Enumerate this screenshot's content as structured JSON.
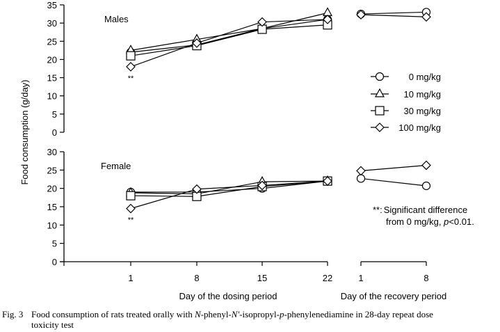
{
  "chart_data": {
    "type": "line",
    "title": "",
    "ylabel": "Food consumption (g/day)",
    "xlabel_dosing": "Day of the dosing period",
    "xlabel_recovery": "Day of the recovery period",
    "x_dosing": [
      1,
      8,
      15,
      22
    ],
    "x_recovery": [
      1,
      8
    ],
    "x_tick_labels_dosing": [
      "1",
      "8",
      "15",
      "22"
    ],
    "x_tick_labels_recovery": [
      "1",
      "8"
    ],
    "panels": [
      {
        "label": "Males",
        "ylim": [
          0,
          35
        ],
        "yticks": [
          0,
          5,
          10,
          15,
          20,
          25,
          30,
          35
        ],
        "significance_marks": [
          {
            "series": "100 mg/kg",
            "day": 1,
            "text": "**"
          }
        ],
        "series": [
          {
            "name": "0 mg/kg",
            "marker": "circle",
            "dosing": [
              22.0,
              24.0,
              28.5,
              31.0
            ],
            "recovery": [
              32.5,
              33.0
            ]
          },
          {
            "name": "10 mg/kg",
            "marker": "triangle",
            "dosing": [
              22.5,
              25.5,
              28.5,
              32.8
            ],
            "recovery": null
          },
          {
            "name": "30 mg/kg",
            "marker": "square",
            "dosing": [
              21.0,
              23.8,
              28.3,
              29.5
            ],
            "recovery": null
          },
          {
            "name": "100 mg/kg",
            "marker": "diamond",
            "dosing": [
              18.0,
              24.5,
              30.3,
              31.0
            ],
            "recovery": [
              32.3,
              31.7
            ]
          }
        ]
      },
      {
        "label": "Female",
        "ylim": [
          0,
          30
        ],
        "yticks": [
          0,
          5,
          10,
          15,
          20,
          25,
          30
        ],
        "significance_marks": [
          {
            "series": "100 mg/kg",
            "day": 1,
            "text": "**"
          }
        ],
        "series": [
          {
            "name": "0 mg/kg",
            "marker": "circle",
            "dosing": [
              19.0,
              19.0,
              20.0,
              22.0
            ],
            "recovery": [
              22.7,
              20.7
            ]
          },
          {
            "name": "10 mg/kg",
            "marker": "triangle",
            "dosing": [
              18.8,
              18.5,
              21.8,
              22.0
            ],
            "recovery": null
          },
          {
            "name": "30 mg/kg",
            "marker": "square",
            "dosing": [
              18.0,
              17.8,
              20.5,
              22.0
            ],
            "recovery": null
          },
          {
            "name": "100 mg/kg",
            "marker": "diamond",
            "dosing": [
              14.5,
              19.8,
              20.8,
              22.0
            ],
            "recovery": [
              24.8,
              26.3
            ]
          }
        ]
      }
    ],
    "legend": {
      "position": "right-middle",
      "entries": [
        {
          "marker": "circle",
          "label": "0 mg/kg"
        },
        {
          "marker": "triangle",
          "label": "10 mg/kg"
        },
        {
          "marker": "square",
          "label": "30 mg/kg"
        },
        {
          "marker": "diamond",
          "label": "100 mg/kg"
        }
      ]
    },
    "annotation": {
      "prefix": "**:",
      "line1": "Significant difference",
      "line2_text": "from 0 mg/kg, ",
      "line2_italic": "p",
      "line2_suffix": "<0.01."
    }
  },
  "caption": {
    "number": "Fig. 3",
    "text_parts": [
      {
        "t": "Food consumption of rats treated orally with ",
        "i": false
      },
      {
        "t": "N",
        "i": true
      },
      {
        "t": "-phenyl-",
        "i": false
      },
      {
        "t": "N'",
        "i": true
      },
      {
        "t": "-isopropyl-",
        "i": false
      },
      {
        "t": "p",
        "i": true
      },
      {
        "t": "-phenylenediamine in 28-day repeat dose",
        "i": false
      }
    ],
    "line2": "toxicity test"
  }
}
